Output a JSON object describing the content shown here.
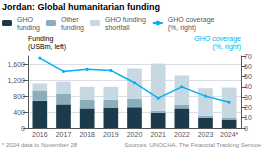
{
  "chart_data": {
    "type": "bar",
    "title": "Jordan: Global humanitarian funding",
    "categories": [
      "2016",
      "2017",
      "2018",
      "2019",
      "2020",
      "2021",
      "2022",
      "2023",
      "2024*"
    ],
    "series": [
      {
        "name": "GHO\nfunding",
        "type": "bar",
        "color": "#1b3a4b",
        "values": [
          680,
          590,
          490,
          510,
          520,
          380,
          490,
          255,
          200
        ]
      },
      {
        "name": "Other\nfunding",
        "type": "bar",
        "color": "#8aaebb",
        "values": [
          260,
          260,
          220,
          195,
          205,
          50,
          85,
          50,
          50
        ]
      },
      {
        "name": "GHO funding\nshortfall",
        "type": "bar",
        "color": "#c8d8e3",
        "values": [
          170,
          310,
          320,
          325,
          760,
          1180,
          740,
          690,
          760
        ]
      },
      {
        "name": "GHO coverage\n(%, right)",
        "type": "line",
        "axis": "y2",
        "color": "#00b0f0",
        "marker": "circle",
        "values": [
          68,
          55,
          57,
          56,
          44,
          29,
          40,
          31,
          25
        ]
      }
    ],
    "stacked": true,
    "ylabel": "Funding\n(USBm, left)",
    "y2label": "GHO coverage\n(%, right)",
    "ylim": [
      0,
      1800
    ],
    "yticks": [
      0,
      400,
      800,
      1200,
      1600
    ],
    "y2lim": [
      0,
      70
    ],
    "y2ticks": [
      0,
      10,
      20,
      30,
      40,
      50,
      60,
      70
    ],
    "grid": true,
    "legend": "upper left",
    "annotations": [
      "* 2024 data to November 28",
      "Sources: UNOCHA, The Financial Tracking Service"
    ]
  }
}
